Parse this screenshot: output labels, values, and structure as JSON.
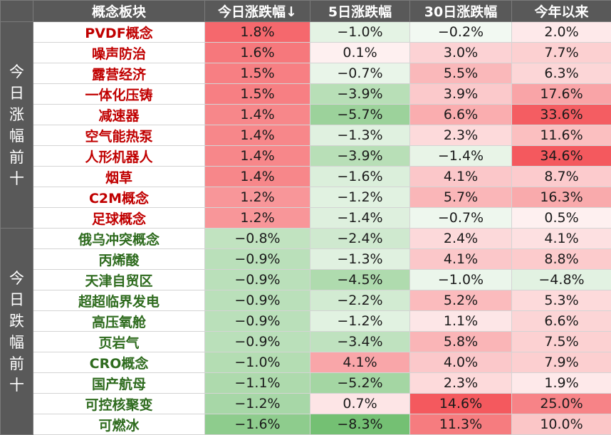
{
  "headers": {
    "side": "",
    "name": "概念板块",
    "today": "今日涨跌幅↓",
    "d5": "5日涨跌幅",
    "d30": "30日涨跌幅",
    "ytd": "今年以来"
  },
  "groups": [
    {
      "label": "今日涨幅前十",
      "trend": "up",
      "rows": [
        {
          "name": "PVDF概念",
          "today": "1.8%",
          "d5": "−1.0%",
          "d30": "−0.2%",
          "ytd": "2.0%"
        },
        {
          "name": "噪声防治",
          "today": "1.6%",
          "d5": "0.1%",
          "d30": "3.0%",
          "ytd": "7.7%"
        },
        {
          "name": "露营经济",
          "today": "1.5%",
          "d5": "−0.7%",
          "d30": "5.5%",
          "ytd": "6.3%"
        },
        {
          "name": "一体化压铸",
          "today": "1.5%",
          "d5": "−3.9%",
          "d30": "3.9%",
          "ytd": "17.6%"
        },
        {
          "name": "减速器",
          "today": "1.4%",
          "d5": "−5.7%",
          "d30": "6.6%",
          "ytd": "33.6%"
        },
        {
          "name": "空气能热泵",
          "today": "1.4%",
          "d5": "−1.3%",
          "d30": "2.3%",
          "ytd": "11.6%"
        },
        {
          "name": "人形机器人",
          "today": "1.4%",
          "d5": "−3.9%",
          "d30": "−1.4%",
          "ytd": "34.6%"
        },
        {
          "name": "烟草",
          "today": "1.4%",
          "d5": "−1.6%",
          "d30": "4.1%",
          "ytd": "8.7%"
        },
        {
          "name": "C2M概念",
          "today": "1.2%",
          "d5": "−1.2%",
          "d30": "5.7%",
          "ytd": "16.3%"
        },
        {
          "name": "足球概念",
          "today": "1.2%",
          "d5": "−1.4%",
          "d30": "−0.7%",
          "ytd": "0.5%"
        }
      ]
    },
    {
      "label": "今日跌幅前十",
      "trend": "down",
      "rows": [
        {
          "name": "俄乌冲突概念",
          "today": "−0.8%",
          "d5": "−2.4%",
          "d30": "2.4%",
          "ytd": "4.1%"
        },
        {
          "name": "丙烯酸",
          "today": "−0.9%",
          "d5": "−1.3%",
          "d30": "4.1%",
          "ytd": "8.8%"
        },
        {
          "name": "天津自贸区",
          "today": "−0.9%",
          "d5": "−4.5%",
          "d30": "−1.0%",
          "ytd": "−4.8%"
        },
        {
          "name": "超超临界发电",
          "today": "−0.9%",
          "d5": "−2.2%",
          "d30": "5.2%",
          "ytd": "5.3%"
        },
        {
          "name": "高压氧舱",
          "today": "−0.9%",
          "d5": "−1.2%",
          "d30": "1.1%",
          "ytd": "6.6%"
        },
        {
          "name": "页岩气",
          "today": "−0.9%",
          "d5": "−3.4%",
          "d30": "5.8%",
          "ytd": "7.5%"
        },
        {
          "name": "CRO概念",
          "today": "−1.0%",
          "d5": "4.1%",
          "d30": "4.0%",
          "ytd": "7.9%"
        },
        {
          "name": "国产航母",
          "today": "−1.1%",
          "d5": "−5.2%",
          "d30": "2.3%",
          "ytd": "1.9%"
        },
        {
          "name": "可控核聚变",
          "today": "−1.2%",
          "d5": "0.7%",
          "d30": "14.6%",
          "ytd": "25.0%"
        },
        {
          "name": "可燃冰",
          "today": "−1.6%",
          "d5": "−8.3%",
          "d30": "11.3%",
          "ytd": "10.0%"
        }
      ]
    }
  ],
  "colors": {
    "header_bg": "#595959",
    "up_text": "#c00000",
    "down_text": "#2e6b1e",
    "pos_max": "#f4595e",
    "neg_max": "#74c073"
  },
  "heat_scale_max": {
    "today": 2.0,
    "d5": 8.3,
    "d30": 14.6,
    "ytd": 34.6
  }
}
